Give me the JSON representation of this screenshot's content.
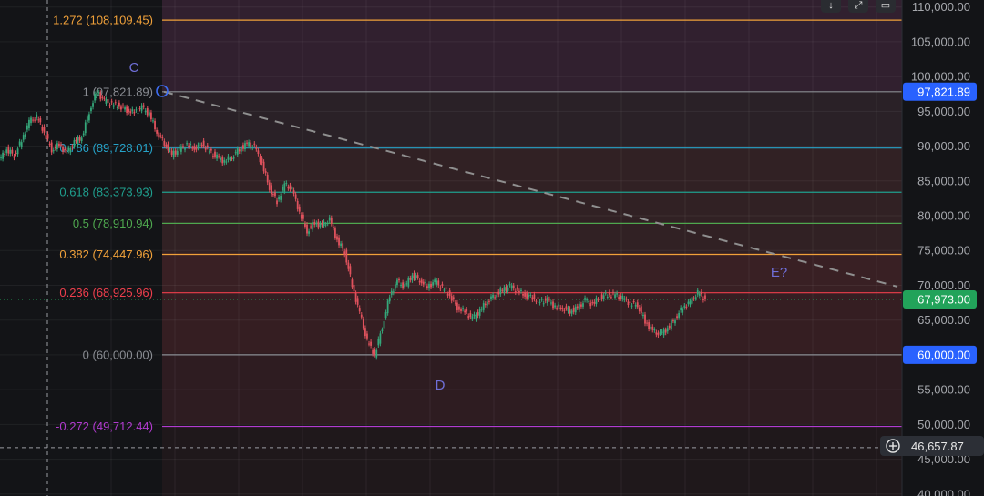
{
  "chart_data": {
    "type": "line",
    "price_axis": {
      "ylim": [
        40000,
        111500
      ],
      "ticks": [
        "110,000.00",
        "105,000.00",
        "100,000.00",
        "95,000.00",
        "90,000.00",
        "85,000.00",
        "80,000.00",
        "75,000.00",
        "70,000.00",
        "65,000.00",
        "60,000.00",
        "55,000.00",
        "50,000.00",
        "45,000.00",
        "40,000.00"
      ],
      "tick_values": [
        110000,
        105000,
        100000,
        95000,
        90000,
        85000,
        80000,
        75000,
        70000,
        65000,
        60000,
        55000,
        50000,
        45000,
        40000
      ]
    },
    "fib_levels": [
      {
        "label": "1.272 (108,109.45)",
        "value": 108109.45,
        "color": "#f0a13a"
      },
      {
        "label": "1 (97,821.89)",
        "value": 97821.89,
        "color": "#8a8d93"
      },
      {
        "label": "0.786 (89,728.01)",
        "value": 89728.01,
        "color": "#26a3c9"
      },
      {
        "label": "0.618 (83,373.93)",
        "value": 83373.93,
        "color": "#1f9f8e"
      },
      {
        "label": "0.5 (78,910.94)",
        "value": 78910.94,
        "color": "#4fa84f"
      },
      {
        "label": "0.382 (74,447.96)",
        "value": 74447.96,
        "color": "#f0a13a"
      },
      {
        "label": "0.236 (68,925.96)",
        "value": 68925.96,
        "color": "#ee3f4c"
      },
      {
        "label": "0 (60,000.00)",
        "value": 60000.0,
        "color": "#8a8d93"
      },
      {
        "label": "-0.272 (49,712.44)",
        "value": 49712.44,
        "color": "#b23bd0"
      }
    ],
    "price_tags": [
      {
        "label": "97,821.89",
        "value": 97821.89,
        "color": "#2962ff"
      },
      {
        "label": "67,973.00",
        "value": 67973,
        "color": "#22a35a"
      },
      {
        "label": "60,000.00",
        "value": 60000,
        "color": "#2962ff"
      }
    ],
    "crosshair": {
      "label": "46,657.87",
      "value": 46657.87
    },
    "wave_labels": [
      {
        "text": "C",
        "value": 97821.89
      },
      {
        "text": "D",
        "value": 60000
      },
      {
        "text": "E?",
        "value": 69000
      }
    ],
    "trendline": {
      "from": 97821.89,
      "to": 69800
    },
    "price_series": [
      88000,
      89500,
      88700,
      90800,
      93500,
      94200,
      92000,
      89500,
      90200,
      89000,
      90500,
      91300,
      95000,
      97821,
      96500,
      96000,
      95800,
      95200,
      94800,
      95500,
      94600,
      92000,
      90500,
      88800,
      89500,
      90200,
      89700,
      90400,
      89200,
      88400,
      87800,
      88500,
      89600,
      90300,
      89900,
      87500,
      84000,
      82000,
      84500,
      83800,
      80500,
      77800,
      79000,
      78500,
      79400,
      76500,
      74800,
      70000,
      66000,
      62000,
      60000,
      64000,
      68500,
      70500,
      69800,
      71500,
      70800,
      69800,
      70500,
      69600,
      68600,
      66800,
      66200,
      65200,
      66300,
      67800,
      68600,
      69300,
      69800,
      69200,
      68600,
      68300,
      67600,
      67900,
      66900,
      66800,
      66300,
      66700,
      67800,
      67300,
      68300,
      68700,
      68600,
      68100,
      67400,
      67200,
      64800,
      63400,
      62900,
      63800,
      65300,
      66800,
      67600,
      68900,
      68000
    ]
  },
  "toolbar": {
    "download_icon": "arrow-down-icon",
    "expand_icon": "expand-icon",
    "camera_icon": "camera-icon"
  },
  "crosshair_icon": "plus-circle-icon"
}
